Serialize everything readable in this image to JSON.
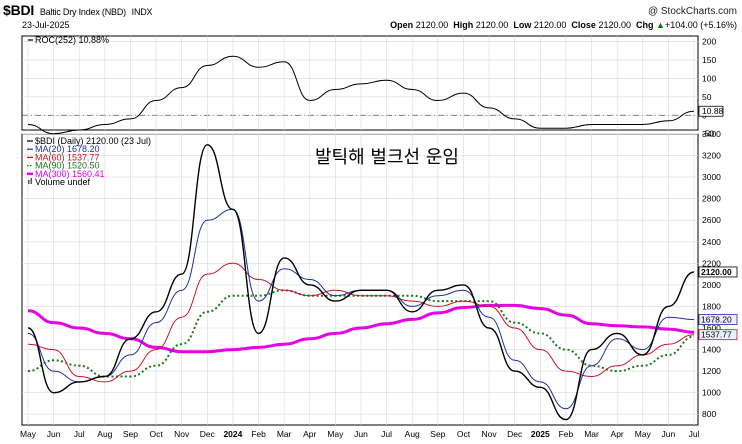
{
  "header": {
    "symbol": "$BDI",
    "name": "Baltic Dry Index (NBD)",
    "exchange": "INDX",
    "date": "23-Jul-2025",
    "watermark": "@ StockCharts.com",
    "open_label": "Open",
    "open": "2120.00",
    "high_label": "High",
    "high": "2120.00",
    "low_label": "Low",
    "low": "2120.00",
    "close_label": "Close",
    "close": "2120.00",
    "chg_label": "Chg",
    "chg": "+104.00 (+5.16%)",
    "chg_arrow": "▲"
  },
  "overlay_title": "발틱해 벌크선 운임",
  "colors": {
    "price": "#000000",
    "ma20": "#1f2fa0",
    "ma60": "#d0112b",
    "ma90": "#1a7a1a",
    "ma300": "#e600e6",
    "roc": "#000000",
    "grid": "#d9d9d9",
    "frame": "#000000"
  },
  "chart_data": [
    {
      "type": "line",
      "title": "ROC(252) 10.88%",
      "legend_label": "ROC(252) 10.88%",
      "last_value_label": "10.88",
      "ylim": [
        -40,
        215
      ],
      "yticks": [
        "200",
        "150",
        "100",
        "50",
        "0",
        "-50"
      ],
      "x": [
        "2023-05",
        "2023-06",
        "2023-07",
        "2023-08",
        "2023-09",
        "2023-10",
        "2023-11",
        "2023-12",
        "2024-01",
        "2024-02",
        "2024-03",
        "2024-04",
        "2024-05",
        "2024-06",
        "2024-07",
        "2024-08",
        "2024-09",
        "2024-10",
        "2024-11",
        "2024-12",
        "2025-01",
        "2025-02",
        "2025-03",
        "2025-04",
        "2025-05",
        "2025-06",
        "2025-07"
      ],
      "series": [
        {
          "name": "ROC(252)",
          "values": [
            -25,
            -50,
            -40,
            -25,
            -10,
            40,
            75,
            135,
            160,
            130,
            145,
            40,
            70,
            85,
            95,
            70,
            40,
            60,
            20,
            -10,
            -35,
            -35,
            -25,
            -25,
            -25,
            -15,
            10.88
          ]
        }
      ]
    },
    {
      "type": "line",
      "title": "$BDI (Daily) 2120.00 (23 Jul)",
      "ylim": [
        700,
        3400
      ],
      "ytick_values": [
        800,
        1000,
        1200,
        1400,
        1600,
        1800,
        2000,
        2200,
        2400,
        2600,
        2800,
        3000,
        3200,
        3400
      ],
      "ytick_labels": [
        "800",
        "1000",
        "1200",
        "1400",
        "1600",
        "1800",
        "2000",
        "2200",
        "2400",
        "2600",
        "2800",
        "3000",
        "3200",
        "3400"
      ],
      "xlabels": [
        "May",
        "Jun",
        "Jul",
        "Aug",
        "Sep",
        "Oct",
        "Nov",
        "Dec",
        "2024",
        "Feb",
        "Mar",
        "Apr",
        "May",
        "Jun",
        "Jul",
        "Aug",
        "Sep",
        "Oct",
        "Nov",
        "Dec",
        "2025",
        "Feb",
        "Mar",
        "Apr",
        "May",
        "Jun",
        "Jul"
      ],
      "x": [
        "2023-05",
        "2023-06",
        "2023-07",
        "2023-08",
        "2023-09",
        "2023-10",
        "2023-11",
        "2023-12",
        "2024-01",
        "2024-02",
        "2024-03",
        "2024-04",
        "2024-05",
        "2024-06",
        "2024-07",
        "2024-08",
        "2024-09",
        "2024-10",
        "2024-11",
        "2024-12",
        "2025-01",
        "2025-02",
        "2025-03",
        "2025-04",
        "2025-05",
        "2025-06",
        "2025-07"
      ],
      "legend": [
        {
          "label": "$BDI (Daily) 2120.00 (23 Jul)",
          "key": "price",
          "style": "solid"
        },
        {
          "label": "MA(20) 1678.20",
          "key": "ma20",
          "style": "solid"
        },
        {
          "label": "MA(60) 1537.77",
          "key": "ma60",
          "style": "solid"
        },
        {
          "label": "MA(90) 1520.50",
          "key": "ma90",
          "style": "dotted"
        },
        {
          "label": "MA(300) 1560.41",
          "key": "ma300",
          "style": "thick"
        },
        {
          "label": "Volume undef",
          "key": "volume",
          "style": "bars"
        }
      ],
      "price_tags": [
        {
          "label": "2120.00",
          "value": 2120,
          "key": "price"
        },
        {
          "label": "1678.20",
          "value": 1678,
          "key": "ma20"
        },
        {
          "label": "1537.77",
          "value": 1538,
          "key": "ma60"
        }
      ],
      "series": [
        {
          "name": "$BDI",
          "key": "price",
          "values": [
            1600,
            1000,
            1100,
            1150,
            1500,
            1750,
            2100,
            3300,
            2700,
            1550,
            2250,
            2000,
            1850,
            1950,
            1950,
            1750,
            1950,
            2000,
            1600,
            1200,
            1050,
            750,
            1400,
            1550,
            1350,
            1800,
            2120
          ]
        },
        {
          "name": "MA(20)",
          "key": "ma20",
          "values": [
            1550,
            1200,
            1100,
            1150,
            1350,
            1650,
            1950,
            2600,
            2700,
            1850,
            2150,
            2050,
            1900,
            1950,
            1950,
            1800,
            1900,
            1950,
            1700,
            1300,
            1100,
            850,
            1250,
            1500,
            1400,
            1700,
            1678
          ]
        },
        {
          "name": "MA(60)",
          "key": "ma60",
          "values": [
            1450,
            1400,
            1150,
            1100,
            1200,
            1400,
            1700,
            2100,
            2200,
            2050,
            1950,
            1900,
            1950,
            1900,
            1900,
            1850,
            1800,
            1850,
            1800,
            1600,
            1400,
            1200,
            1150,
            1250,
            1350,
            1450,
            1538
          ]
        },
        {
          "name": "MA(90)",
          "key": "ma90",
          "values": [
            1200,
            1300,
            1250,
            1150,
            1150,
            1250,
            1450,
            1750,
            1900,
            1900,
            1950,
            1900,
            1900,
            1900,
            1900,
            1900,
            1850,
            1850,
            1850,
            1650,
            1550,
            1400,
            1250,
            1200,
            1250,
            1350,
            1520
          ]
        },
        {
          "name": "MA(300)",
          "key": "ma300",
          "values": [
            1760,
            1650,
            1600,
            1550,
            1500,
            1420,
            1380,
            1380,
            1400,
            1420,
            1450,
            1500,
            1550,
            1600,
            1640,
            1680,
            1740,
            1790,
            1810,
            1810,
            1780,
            1720,
            1640,
            1620,
            1610,
            1590,
            1560
          ]
        }
      ]
    }
  ]
}
